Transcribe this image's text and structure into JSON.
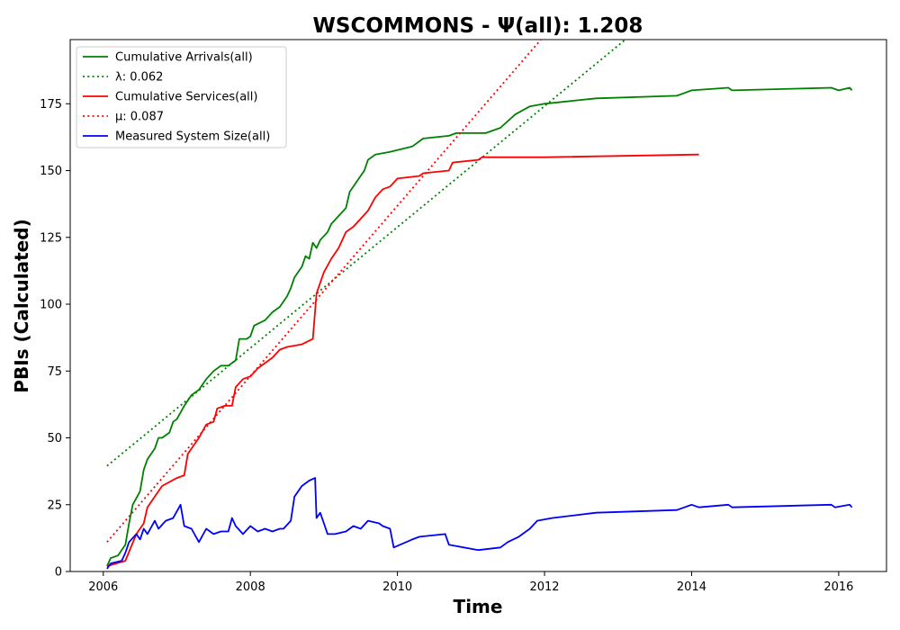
{
  "chart_data": {
    "type": "line",
    "title": "WSCOMMONS -  Ψ(all): 1.208",
    "xlabel": "Time",
    "ylabel": "PBIs (Calculated)",
    "xlim": [
      2005.55,
      2016.65
    ],
    "ylim": [
      0,
      199
    ],
    "xticks": [
      2006,
      2008,
      2010,
      2012,
      2014,
      2016
    ],
    "xtick_labels": [
      "2006",
      "2008",
      "2010",
      "2012",
      "2014",
      "2016"
    ],
    "yticks": [
      0,
      25,
      50,
      75,
      100,
      125,
      150,
      175
    ],
    "ytick_labels": [
      "0",
      "25",
      "50",
      "75",
      "100",
      "125",
      "150",
      "175"
    ],
    "grid": false,
    "legend_position": "upper-left",
    "series": [
      {
        "name": "Cumulative Arrivals(all)",
        "color": "#008000",
        "style": "solid",
        "points": [
          [
            2006.05,
            2
          ],
          [
            2006.1,
            5
          ],
          [
            2006.2,
            6
          ],
          [
            2006.3,
            10
          ],
          [
            2006.35,
            18
          ],
          [
            2006.4,
            25
          ],
          [
            2006.5,
            30
          ],
          [
            2006.55,
            38
          ],
          [
            2006.6,
            42
          ],
          [
            2006.7,
            46
          ],
          [
            2006.75,
            50
          ],
          [
            2006.8,
            50
          ],
          [
            2006.9,
            52
          ],
          [
            2006.95,
            56
          ],
          [
            2007.0,
            57
          ],
          [
            2007.1,
            62
          ],
          [
            2007.2,
            66
          ],
          [
            2007.3,
            68
          ],
          [
            2007.4,
            72
          ],
          [
            2007.5,
            75
          ],
          [
            2007.6,
            77
          ],
          [
            2007.7,
            77
          ],
          [
            2007.8,
            79
          ],
          [
            2007.85,
            87
          ],
          [
            2007.95,
            87
          ],
          [
            2008.0,
            88
          ],
          [
            2008.05,
            92
          ],
          [
            2008.2,
            94
          ],
          [
            2008.3,
            97
          ],
          [
            2008.4,
            99
          ],
          [
            2008.5,
            103
          ],
          [
            2008.55,
            106
          ],
          [
            2008.6,
            110
          ],
          [
            2008.7,
            114
          ],
          [
            2008.75,
            118
          ],
          [
            2008.8,
            117
          ],
          [
            2008.85,
            123
          ],
          [
            2008.9,
            121
          ],
          [
            2008.95,
            124
          ],
          [
            2009.05,
            127
          ],
          [
            2009.1,
            130
          ],
          [
            2009.2,
            133
          ],
          [
            2009.3,
            136
          ],
          [
            2009.35,
            142
          ],
          [
            2009.45,
            146
          ],
          [
            2009.55,
            150
          ],
          [
            2009.6,
            154
          ],
          [
            2009.7,
            156
          ],
          [
            2009.9,
            157
          ],
          [
            2010.2,
            159
          ],
          [
            2010.35,
            162
          ],
          [
            2010.7,
            163
          ],
          [
            2010.8,
            164
          ],
          [
            2011.2,
            164
          ],
          [
            2011.4,
            166
          ],
          [
            2011.6,
            171
          ],
          [
            2011.8,
            174
          ],
          [
            2012.0,
            175
          ],
          [
            2012.7,
            177
          ],
          [
            2013.8,
            178
          ],
          [
            2014.0,
            180
          ],
          [
            2014.5,
            181
          ],
          [
            2014.55,
            180
          ],
          [
            2015.9,
            181
          ],
          [
            2016.0,
            180
          ],
          [
            2016.15,
            181
          ],
          [
            2016.18,
            180
          ]
        ]
      },
      {
        "name": "λ: 0.062",
        "color": "#008000",
        "style": "dotted",
        "points": [
          [
            2006.05,
            39.5
          ],
          [
            2013.1,
            199
          ]
        ]
      },
      {
        "name": "Cumulative Services(all)",
        "color": "#ff0000",
        "style": "solid",
        "points": [
          [
            2006.05,
            2
          ],
          [
            2006.3,
            4
          ],
          [
            2006.45,
            14
          ],
          [
            2006.55,
            18
          ],
          [
            2006.6,
            24
          ],
          [
            2006.7,
            28
          ],
          [
            2006.8,
            32
          ],
          [
            2007.0,
            35
          ],
          [
            2007.1,
            36
          ],
          [
            2007.15,
            44
          ],
          [
            2007.2,
            46
          ],
          [
            2007.3,
            50
          ],
          [
            2007.4,
            55
          ],
          [
            2007.5,
            56
          ],
          [
            2007.55,
            61
          ],
          [
            2007.65,
            62
          ],
          [
            2007.75,
            62
          ],
          [
            2007.8,
            69
          ],
          [
            2007.9,
            72
          ],
          [
            2008.0,
            73
          ],
          [
            2008.1,
            76
          ],
          [
            2008.2,
            78
          ],
          [
            2008.3,
            80
          ],
          [
            2008.4,
            83
          ],
          [
            2008.5,
            84
          ],
          [
            2008.7,
            85
          ],
          [
            2008.85,
            87
          ],
          [
            2008.9,
            104
          ],
          [
            2009.0,
            112
          ],
          [
            2009.1,
            117
          ],
          [
            2009.2,
            121
          ],
          [
            2009.3,
            127
          ],
          [
            2009.4,
            129
          ],
          [
            2009.5,
            132
          ],
          [
            2009.6,
            135
          ],
          [
            2009.7,
            140
          ],
          [
            2009.8,
            143
          ],
          [
            2009.9,
            144
          ],
          [
            2010.0,
            147
          ],
          [
            2010.3,
            148
          ],
          [
            2010.35,
            149
          ],
          [
            2010.7,
            150
          ],
          [
            2010.75,
            153
          ],
          [
            2011.1,
            154
          ],
          [
            2011.15,
            155
          ],
          [
            2012.0,
            155
          ],
          [
            2014.1,
            156
          ]
        ]
      },
      {
        "name": "μ: 0.087",
        "color": "#ff0000",
        "style": "dotted",
        "points": [
          [
            2006.05,
            11
          ],
          [
            2011.95,
            199
          ]
        ]
      },
      {
        "name": "Measured System Size(all)",
        "color": "#0000ff",
        "style": "solid",
        "points": [
          [
            2006.05,
            1
          ],
          [
            2006.1,
            3
          ],
          [
            2006.25,
            4
          ],
          [
            2006.3,
            7
          ],
          [
            2006.35,
            11
          ],
          [
            2006.45,
            14
          ],
          [
            2006.5,
            12
          ],
          [
            2006.55,
            16
          ],
          [
            2006.6,
            14
          ],
          [
            2006.7,
            19
          ],
          [
            2006.75,
            16
          ],
          [
            2006.85,
            19
          ],
          [
            2006.95,
            20
          ],
          [
            2007.05,
            25
          ],
          [
            2007.1,
            17
          ],
          [
            2007.2,
            16
          ],
          [
            2007.3,
            11
          ],
          [
            2007.4,
            16
          ],
          [
            2007.5,
            14
          ],
          [
            2007.6,
            15
          ],
          [
            2007.7,
            15
          ],
          [
            2007.75,
            20
          ],
          [
            2007.8,
            17
          ],
          [
            2007.9,
            14
          ],
          [
            2008.0,
            17
          ],
          [
            2008.1,
            15
          ],
          [
            2008.2,
            16
          ],
          [
            2008.3,
            15
          ],
          [
            2008.4,
            16
          ],
          [
            2008.45,
            16
          ],
          [
            2008.55,
            19
          ],
          [
            2008.6,
            28
          ],
          [
            2008.7,
            32
          ],
          [
            2008.8,
            34
          ],
          [
            2008.88,
            35
          ],
          [
            2008.9,
            20
          ],
          [
            2008.95,
            22
          ],
          [
            2009.0,
            18
          ],
          [
            2009.05,
            14
          ],
          [
            2009.15,
            14
          ],
          [
            2009.3,
            15
          ],
          [
            2009.4,
            17
          ],
          [
            2009.5,
            16
          ],
          [
            2009.6,
            19
          ],
          [
            2009.75,
            18
          ],
          [
            2009.8,
            17
          ],
          [
            2009.9,
            16
          ],
          [
            2009.95,
            9
          ],
          [
            2010.2,
            12
          ],
          [
            2010.3,
            13
          ],
          [
            2010.65,
            14
          ],
          [
            2010.7,
            10
          ],
          [
            2011.1,
            8
          ],
          [
            2011.4,
            9
          ],
          [
            2011.5,
            11
          ],
          [
            2011.65,
            13
          ],
          [
            2011.8,
            16
          ],
          [
            2011.9,
            19
          ],
          [
            2012.1,
            20
          ],
          [
            2012.7,
            22
          ],
          [
            2013.8,
            23
          ],
          [
            2014.0,
            25
          ],
          [
            2014.1,
            24
          ],
          [
            2014.5,
            25
          ],
          [
            2014.55,
            24
          ],
          [
            2015.9,
            25
          ],
          [
            2015.95,
            24
          ],
          [
            2016.15,
            25
          ],
          [
            2016.18,
            24
          ]
        ]
      }
    ]
  }
}
